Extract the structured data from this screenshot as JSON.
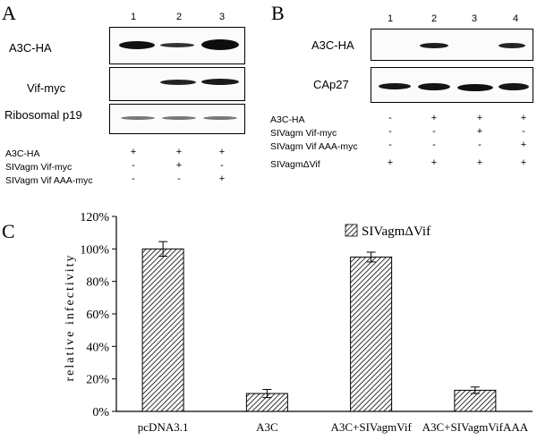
{
  "panelA": {
    "letter": "A",
    "lanes": [
      "1",
      "2",
      "3"
    ],
    "blots": [
      {
        "label": "A3C-HA",
        "bands": [
          1,
          0.5,
          1
        ]
      },
      {
        "label": "Vif-myc",
        "bands": [
          0,
          0.8,
          0.85
        ]
      },
      {
        "label": "Ribosomal p19",
        "bands": [
          0.45,
          0.45,
          0.45
        ]
      }
    ],
    "conditions": [
      {
        "label": "A3C-HA",
        "signs": [
          "+",
          "+",
          "+"
        ]
      },
      {
        "label": "SIVagm Vif-myc",
        "signs": [
          "-",
          "+",
          "-"
        ]
      },
      {
        "label": "SIVagm Vif AAA-myc",
        "signs": [
          "-",
          "-",
          "+"
        ]
      }
    ]
  },
  "panelB": {
    "letter": "B",
    "lanes": [
      "1",
      "2",
      "3",
      "4"
    ],
    "blots": [
      {
        "label": "A3C-HA",
        "bands": [
          0,
          0.75,
          0,
          0.7
        ]
      },
      {
        "label": "CAp27",
        "bands": [
          0.9,
          0.9,
          0.95,
          0.9
        ]
      }
    ],
    "conditions": [
      {
        "label": "A3C-HA",
        "signs": [
          "-",
          "+",
          "+",
          "+"
        ]
      },
      {
        "label": "SIVagm Vif-myc",
        "signs": [
          "-",
          "-",
          "+",
          "-"
        ]
      },
      {
        "label": "SIVagm Vif AAA-myc",
        "signs": [
          "-",
          "-",
          "-",
          "+"
        ]
      },
      {
        "label": "SIVagmΔVif",
        "signs": [
          "+",
          "+",
          "+",
          "+"
        ]
      }
    ]
  },
  "panelC": {
    "letter": "C",
    "chart_data": {
      "type": "bar",
      "categories": [
        "pcDNA3.1",
        "A3C",
        "A3C+SIVagmVif",
        "A3C+SIVagmVifAAA"
      ],
      "series": [
        {
          "name": "SIVagmΔVif",
          "values": [
            100,
            11,
            95,
            13
          ],
          "errors": [
            4.5,
            2.5,
            3,
            2
          ]
        }
      ],
      "ylabel": "relative infectivity",
      "ylim": [
        0,
        120
      ],
      "yticks": [
        "0%",
        "20%",
        "40%",
        "60%",
        "80%",
        "100%",
        "120%"
      ],
      "grid": false,
      "legend": "top-right",
      "pattern": "diagonal-hatch"
    }
  }
}
